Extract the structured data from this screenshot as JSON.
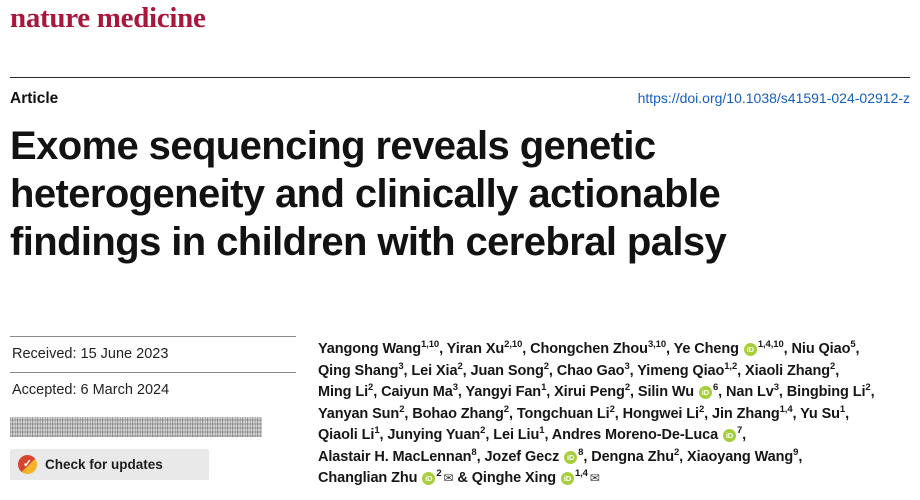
{
  "colors": {
    "brand": "#a8173c",
    "link": "#1560bd",
    "orcid": "#a6ce39",
    "crossmark_red": "#d6452f",
    "crossmark_yellow": "#f3b229"
  },
  "masthead": {
    "journal": "nature medicine"
  },
  "header": {
    "label": "Article",
    "doi": "https://doi.org/10.1038/s41591-024-02912-z"
  },
  "title": "Exome sequencing reveals genetic heterogeneity and clinically actionable findings in children with cerebral palsy",
  "dates": {
    "received": "Received: 15 June 2023",
    "accepted": "Accepted: 6 March 2024"
  },
  "badges": {
    "check_updates": "Check for updates"
  },
  "icons": {
    "orcid": "iD",
    "email": "✉",
    "check": "✓"
  },
  "author_lines": [
    [
      {
        "t": "Yangong Wang"
      },
      {
        "s": "1,10"
      },
      {
        "t": ", Yiran Xu"
      },
      {
        "s": "2,10"
      },
      {
        "t": ", Chongchen Zhou"
      },
      {
        "s": "3,10"
      },
      {
        "t": ", Ye Cheng "
      },
      {
        "i": "orcid"
      },
      {
        "s": "1,4,10"
      },
      {
        "t": ", Niu Qiao"
      },
      {
        "s": "5"
      },
      {
        "t": ","
      }
    ],
    [
      {
        "t": "Qing Shang"
      },
      {
        "s": "3"
      },
      {
        "t": ", Lei Xia"
      },
      {
        "s": "2"
      },
      {
        "t": ", Juan Song"
      },
      {
        "s": "2"
      },
      {
        "t": ", Chao Gao"
      },
      {
        "s": "3"
      },
      {
        "t": ", Yimeng Qiao"
      },
      {
        "s": "1,2"
      },
      {
        "t": ", Xiaoli Zhang"
      },
      {
        "s": "2"
      },
      {
        "t": ","
      }
    ],
    [
      {
        "t": "Ming Li"
      },
      {
        "s": "2"
      },
      {
        "t": ", Caiyun Ma"
      },
      {
        "s": "3"
      },
      {
        "t": ", Yangyi Fan"
      },
      {
        "s": "1"
      },
      {
        "t": ", Xirui Peng"
      },
      {
        "s": "2"
      },
      {
        "t": ", Silin Wu "
      },
      {
        "i": "orcid"
      },
      {
        "s": "6"
      },
      {
        "t": ", Nan Lv"
      },
      {
        "s": "3"
      },
      {
        "t": ", Bingbing Li"
      },
      {
        "s": "2"
      },
      {
        "t": ","
      }
    ],
    [
      {
        "t": "Yanyan Sun"
      },
      {
        "s": "2"
      },
      {
        "t": ", Bohao Zhang"
      },
      {
        "s": "2"
      },
      {
        "t": ", Tongchuan Li"
      },
      {
        "s": "2"
      },
      {
        "t": ", Hongwei Li"
      },
      {
        "s": "2"
      },
      {
        "t": ", Jin Zhang"
      },
      {
        "s": "1,4"
      },
      {
        "t": ", Yu Su"
      },
      {
        "s": "1"
      },
      {
        "t": ","
      }
    ],
    [
      {
        "t": "Qiaoli Li"
      },
      {
        "s": "1"
      },
      {
        "t": ", Junying Yuan"
      },
      {
        "s": "2"
      },
      {
        "t": ", Lei Liu"
      },
      {
        "s": "1"
      },
      {
        "t": ", Andres Moreno-De-Luca "
      },
      {
        "i": "orcid"
      },
      {
        "s": "7"
      },
      {
        "t": ","
      }
    ],
    [
      {
        "t": "Alastair H. MacLennan"
      },
      {
        "s": "8"
      },
      {
        "t": ", Jozef Gecz "
      },
      {
        "i": "orcid"
      },
      {
        "s": "8"
      },
      {
        "t": ", Dengna Zhu"
      },
      {
        "s": "2"
      },
      {
        "t": ", Xiaoyang Wang"
      },
      {
        "s": "9"
      },
      {
        "t": ","
      }
    ],
    [
      {
        "t": "Changlian Zhu "
      },
      {
        "i": "orcid"
      },
      {
        "s": "2"
      },
      {
        "i": "email"
      },
      {
        "t": " & Qinghe Xing "
      },
      {
        "i": "orcid"
      },
      {
        "s": "1,4"
      },
      {
        "i": "email"
      }
    ]
  ]
}
